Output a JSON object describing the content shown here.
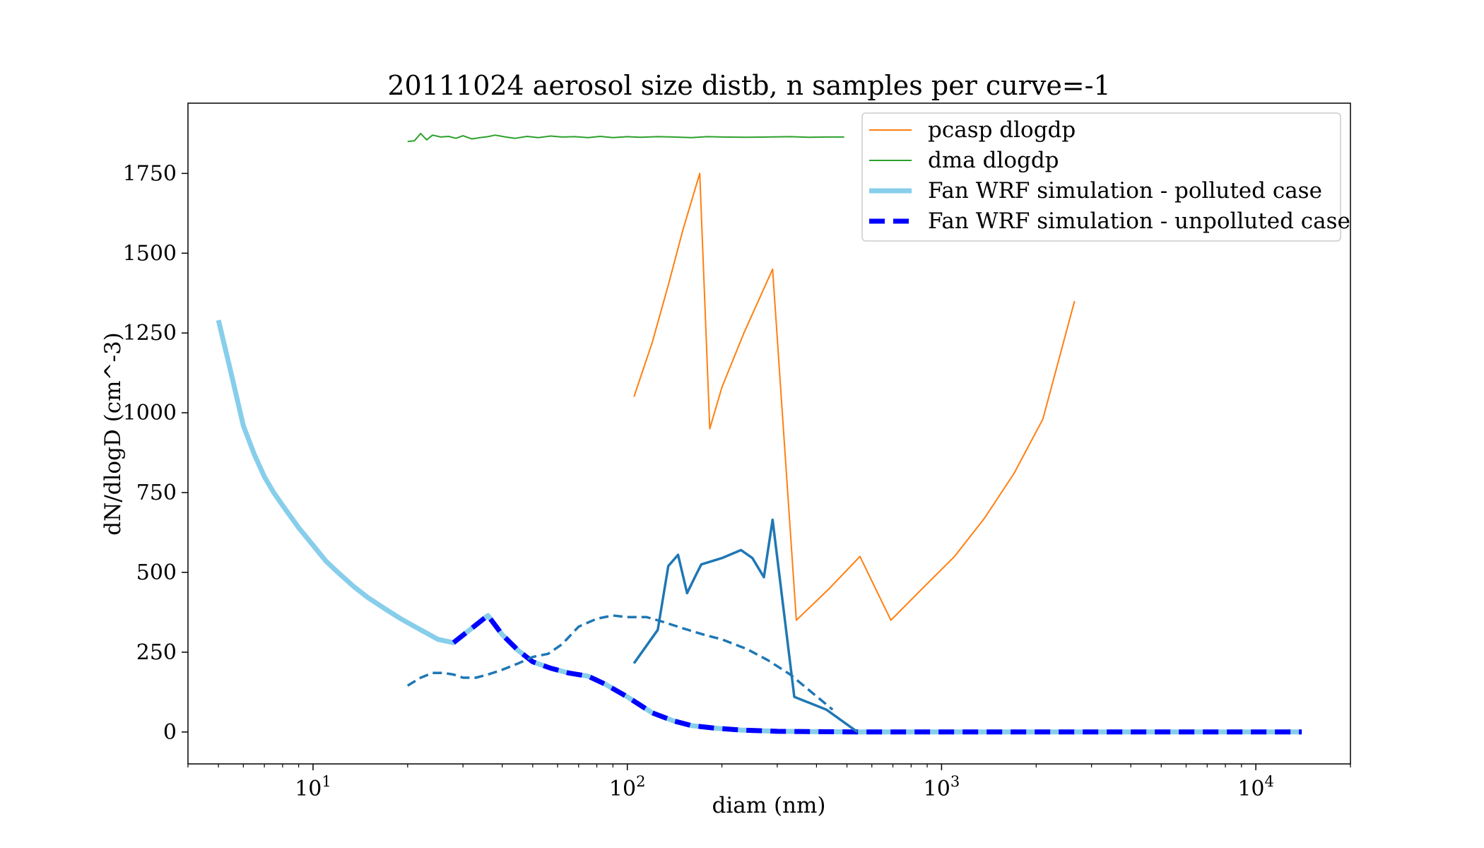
{
  "chart_data": {
    "type": "line",
    "title": "20111024 aerosol size distb, n samples per curve=-1",
    "xlabel": "diam (nm)",
    "ylabel": "dN/dlogD (cm^-3)",
    "xscale": "log",
    "xlim": [
      4,
      20000
    ],
    "ylim": [
      -100,
      1970
    ],
    "x_ticks": [
      {
        "value": 10,
        "base": "10",
        "exp": "1"
      },
      {
        "value": 100,
        "base": "10",
        "exp": "2"
      },
      {
        "value": 1000,
        "base": "10",
        "exp": "3"
      },
      {
        "value": 10000,
        "base": "10",
        "exp": "4"
      }
    ],
    "y_ticks": [
      0,
      250,
      500,
      750,
      1000,
      1250,
      1500,
      1750
    ],
    "legend_position": "top-right",
    "grid": false,
    "series": [
      {
        "name": "pcasp dlogdp",
        "color": "#ff7f0e",
        "style": "solid",
        "width": 2,
        "in_legend": true,
        "x": [
          105,
          120,
          135,
          150,
          170,
          183,
          200,
          235,
          290,
          345,
          440,
          550,
          690,
          870,
          1100,
          1370,
          1700,
          2100,
          2650
        ],
        "y": [
          1050,
          1220,
          1400,
          1570,
          1750,
          950,
          1080,
          1250,
          1450,
          350,
          450,
          550,
          350,
          450,
          550,
          670,
          810,
          980,
          1350
        ]
      },
      {
        "name": "dma dlogdp",
        "color": "#2ca02c",
        "style": "solid",
        "width": 2,
        "in_legend": true,
        "x": [
          20,
          21,
          22,
          23,
          24,
          25.5,
          27,
          28.5,
          30,
          32,
          34,
          36,
          38,
          41,
          44,
          48,
          52,
          57,
          62,
          68,
          75,
          82,
          90,
          100,
          110,
          125,
          140,
          160,
          180,
          200,
          240,
          280,
          330,
          380,
          430,
          490
        ],
        "y": [
          1850,
          1852,
          1875,
          1855,
          1870,
          1864,
          1866,
          1860,
          1868,
          1858,
          1862,
          1865,
          1870,
          1864,
          1860,
          1866,
          1862,
          1867,
          1864,
          1865,
          1862,
          1866,
          1862,
          1865,
          1863,
          1865,
          1864,
          1862,
          1865,
          1864,
          1863,
          1864,
          1865,
          1863,
          1864,
          1864
        ]
      },
      {
        "name": "Fan WRF simulation - polluted case",
        "color": "#87ceeb",
        "style": "solid",
        "width": 7,
        "in_legend": true,
        "x": [
          5,
          5.5,
          6,
          6.5,
          7,
          7.5,
          8,
          9,
          10,
          11,
          12,
          13.5,
          15,
          17,
          19,
          22,
          25,
          28,
          32,
          36,
          40,
          45,
          50,
          57,
          65,
          75,
          85,
          100,
          120,
          140,
          160,
          190,
          230,
          300,
          400,
          550,
          800,
          1200,
          2000,
          3500,
          6000,
          10000,
          14000
        ],
        "y": [
          1290,
          1120,
          960,
          870,
          800,
          750,
          710,
          640,
          585,
          535,
          500,
          455,
          420,
          385,
          355,
          320,
          290,
          280,
          325,
          365,
          305,
          255,
          220,
          200,
          185,
          175,
          150,
          110,
          60,
          35,
          20,
          12,
          6,
          2,
          1,
          0,
          0,
          0,
          0,
          0,
          0,
          0,
          0
        ]
      },
      {
        "name": "Fan WRF simulation - unpolluted case",
        "color": "#0000ff",
        "style": "dashed",
        "width": 7,
        "in_legend": true,
        "x": [
          28,
          32,
          36,
          40,
          45,
          50,
          57,
          65,
          75,
          85,
          100,
          120,
          140,
          160,
          190,
          230,
          300,
          400,
          550,
          800,
          1200,
          2000,
          3500,
          6000,
          10000,
          14000
        ],
        "y": [
          280,
          325,
          365,
          305,
          255,
          220,
          200,
          185,
          175,
          150,
          110,
          60,
          35,
          20,
          12,
          6,
          2,
          1,
          0,
          0,
          0,
          0,
          0,
          0,
          0,
          0
        ]
      },
      {
        "name": "",
        "color": "#1f77b4",
        "style": "solid",
        "width": 3.5,
        "in_legend": false,
        "x": [
          105,
          125,
          135,
          145,
          155,
          165,
          172,
          200,
          230,
          250,
          272,
          290,
          340,
          430,
          540
        ],
        "y": [
          215,
          320,
          520,
          555,
          435,
          490,
          525,
          545,
          570,
          545,
          485,
          665,
          110,
          70,
          0
        ]
      },
      {
        "name": "",
        "color": "#1f77b4",
        "style": "dashed",
        "width": 3.5,
        "in_legend": false,
        "x": [
          20,
          22,
          24,
          26,
          28,
          30,
          33,
          36,
          40,
          45,
          50,
          56,
          62,
          70,
          80,
          90,
          100,
          115,
          130,
          150,
          175,
          200,
          240,
          280,
          330,
          380,
          450
        ],
        "y": [
          145,
          170,
          185,
          185,
          180,
          170,
          170,
          180,
          195,
          215,
          235,
          245,
          275,
          330,
          355,
          365,
          360,
          360,
          345,
          325,
          305,
          290,
          260,
          225,
          180,
          130,
          70
        ]
      }
    ]
  }
}
